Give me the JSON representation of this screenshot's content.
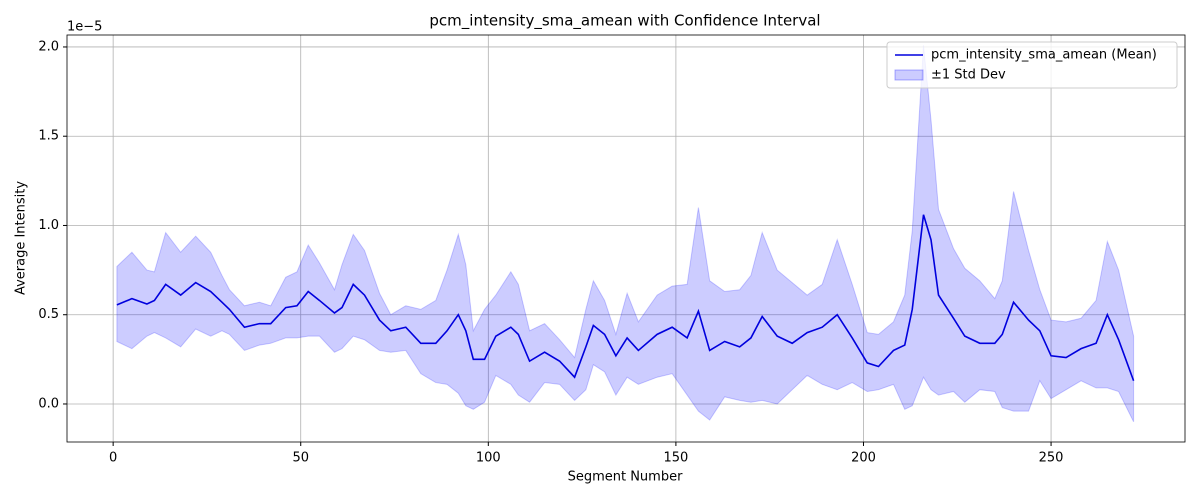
{
  "chart_data": {
    "type": "line",
    "title": "pcm_intensity_sma_amean with Confidence Interval",
    "x_label": "Segment Number",
    "y_label": "Average Intensity",
    "y_offset_label": "1e−5",
    "x": [
      1,
      5,
      9,
      11,
      14,
      18,
      22,
      26,
      29,
      31,
      35,
      39,
      42,
      46,
      49,
      52,
      55,
      59,
      61,
      64,
      67,
      71,
      74,
      78,
      82,
      86,
      89,
      92,
      94,
      96,
      99,
      102,
      106,
      108,
      111,
      115,
      119,
      123,
      126,
      128,
      131,
      134,
      137,
      140,
      145,
      149,
      153,
      156,
      159,
      163,
      167,
      170,
      173,
      177,
      181,
      185,
      189,
      193,
      197,
      201,
      204,
      208,
      211,
      213,
      216,
      218,
      220,
      224,
      227,
      231,
      235,
      237,
      240,
      244,
      247,
      250,
      254,
      258,
      262,
      265,
      268,
      272
    ],
    "series": [
      {
        "name": "pcm_intensity_sma_amean (Mean)",
        "color": "#0000dd",
        "values": [
          0.555,
          0.59,
          0.56,
          0.58,
          0.67,
          0.61,
          0.68,
          0.63,
          0.57,
          0.53,
          0.43,
          0.45,
          0.45,
          0.54,
          0.55,
          0.63,
          0.58,
          0.51,
          0.54,
          0.67,
          0.61,
          0.47,
          0.41,
          0.43,
          0.34,
          0.34,
          0.41,
          0.5,
          0.41,
          0.25,
          0.25,
          0.38,
          0.43,
          0.39,
          0.24,
          0.29,
          0.24,
          0.15,
          0.32,
          0.44,
          0.39,
          0.27,
          0.37,
          0.3,
          0.39,
          0.43,
          0.37,
          0.52,
          0.3,
          0.35,
          0.32,
          0.37,
          0.49,
          0.38,
          0.34,
          0.4,
          0.43,
          0.5,
          0.37,
          0.23,
          0.21,
          0.3,
          0.33,
          0.53,
          1.06,
          0.92,
          0.61,
          0.48,
          0.38,
          0.34,
          0.34,
          0.39,
          0.57,
          0.47,
          0.41,
          0.27,
          0.26,
          0.31,
          0.34,
          0.5,
          0.36,
          0.13
        ]
      }
    ],
    "band": {
      "name": "±1 Std Dev",
      "color": "#0000ff",
      "upper": [
        0.77,
        0.85,
        0.75,
        0.74,
        0.96,
        0.85,
        0.94,
        0.85,
        0.72,
        0.64,
        0.55,
        0.57,
        0.55,
        0.71,
        0.74,
        0.89,
        0.79,
        0.64,
        0.78,
        0.95,
        0.86,
        0.62,
        0.5,
        0.55,
        0.53,
        0.58,
        0.75,
        0.95,
        0.78,
        0.41,
        0.53,
        0.61,
        0.74,
        0.67,
        0.41,
        0.45,
        0.36,
        0.26,
        0.53,
        0.69,
        0.58,
        0.39,
        0.62,
        0.46,
        0.61,
        0.66,
        0.67,
        1.1,
        0.69,
        0.63,
        0.64,
        0.72,
        0.96,
        0.75,
        0.68,
        0.61,
        0.67,
        0.92,
        0.67,
        0.4,
        0.39,
        0.46,
        0.61,
        0.97,
        2.01,
        1.59,
        1.09,
        0.87,
        0.76,
        0.69,
        0.59,
        0.69,
        1.19,
        0.86,
        0.64,
        0.47,
        0.46,
        0.48,
        0.58,
        0.91,
        0.75,
        0.38
      ],
      "lower": [
        0.35,
        0.31,
        0.38,
        0.4,
        0.37,
        0.32,
        0.42,
        0.38,
        0.41,
        0.39,
        0.3,
        0.33,
        0.34,
        0.37,
        0.37,
        0.38,
        0.38,
        0.29,
        0.31,
        0.38,
        0.36,
        0.3,
        0.29,
        0.3,
        0.17,
        0.12,
        0.11,
        0.06,
        -0.01,
        -0.03,
        0.01,
        0.16,
        0.11,
        0.05,
        0.01,
        0.12,
        0.11,
        0.02,
        0.08,
        0.22,
        0.18,
        0.05,
        0.15,
        0.11,
        0.15,
        0.17,
        0.05,
        -0.04,
        -0.09,
        0.04,
        0.02,
        0.01,
        0.02,
        0,
        0.08,
        0.16,
        0.11,
        0.08,
        0.12,
        0.07,
        0.08,
        0.11,
        -0.03,
        -0.01,
        0.15,
        0.08,
        0.05,
        0.07,
        0.01,
        0.08,
        0.07,
        -0.02,
        -0.04,
        -0.04,
        0.13,
        0.03,
        0.08,
        0.13,
        0.09,
        0.09,
        0.07,
        -0.1
      ]
    },
    "xlim": [
      -12.3,
      285.7
    ],
    "ylim": [
      -0.213,
      2.067
    ],
    "xticks": [
      0,
      50,
      100,
      150,
      200,
      250
    ],
    "yticks": [
      {
        "value": 0,
        "label": "0.0"
      },
      0.5,
      {
        "value": 1,
        "label": "1.0"
      },
      1.5,
      {
        "value": 2,
        "label": "2.0"
      }
    ],
    "grid": true,
    "legend": "upper right"
  }
}
